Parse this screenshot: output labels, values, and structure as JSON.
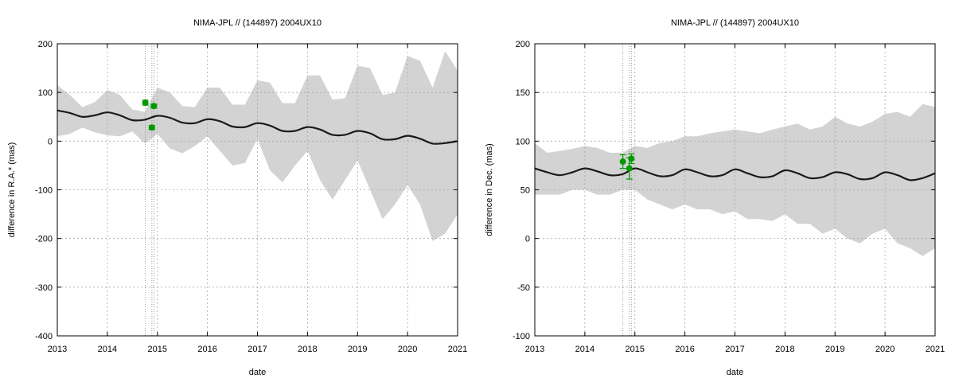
{
  "chart_data": [
    {
      "type": "line",
      "title": "NIMA-JPL // (144897) 2004UX10",
      "xlabel": "date",
      "ylabel": "difference in R.A.* (mas)",
      "xlim": [
        2013,
        2021
      ],
      "ylim": [
        -400,
        200
      ],
      "xticks": [
        "2013",
        "2014",
        "2015",
        "2016",
        "2017",
        "2018",
        "2019",
        "2020",
        "2021"
      ],
      "yticks": [
        "-400",
        "-300",
        "-200",
        "-100",
        "0",
        "100",
        "200"
      ],
      "grid": true,
      "vlines": [
        2014.76,
        2014.89,
        2014.93
      ],
      "series": [
        {
          "kind": "mean-line",
          "color": "#1a1a1a",
          "x": [
            2013.0,
            2013.25,
            2013.5,
            2013.75,
            2014.0,
            2014.25,
            2014.5,
            2014.75,
            2015.0,
            2015.25,
            2015.5,
            2015.75,
            2016.0,
            2016.25,
            2016.5,
            2016.75,
            2017.0,
            2017.25,
            2017.5,
            2017.75,
            2018.0,
            2018.25,
            2018.5,
            2018.75,
            2019.0,
            2019.25,
            2019.5,
            2019.75,
            2020.0,
            2020.25,
            2020.5,
            2020.75,
            2021.0
          ],
          "y": [
            63,
            58,
            50,
            53,
            59,
            53,
            43,
            44,
            52,
            48,
            38,
            37,
            45,
            41,
            30,
            29,
            37,
            32,
            21,
            21,
            29,
            24,
            13,
            13,
            21,
            16,
            4,
            4,
            11,
            5,
            -5,
            -4,
            0
          ]
        },
        {
          "kind": "uncertainty-band",
          "color": "#d3d3d3",
          "x": [
            2013.0,
            2013.25,
            2013.5,
            2013.75,
            2014.0,
            2014.25,
            2014.5,
            2014.75,
            2015.0,
            2015.25,
            2015.5,
            2015.75,
            2016.0,
            2016.25,
            2016.5,
            2016.75,
            2017.0,
            2017.25,
            2017.5,
            2017.75,
            2018.0,
            2018.25,
            2018.5,
            2018.75,
            2019.0,
            2019.25,
            2019.5,
            2019.75,
            2020.0,
            2020.25,
            2020.5,
            2020.75,
            2021.0
          ],
          "upper": [
            115,
            95,
            70,
            80,
            105,
            95,
            65,
            60,
            110,
            100,
            72,
            70,
            110,
            110,
            75,
            75,
            125,
            120,
            78,
            78,
            135,
            135,
            85,
            88,
            155,
            150,
            95,
            100,
            175,
            165,
            110,
            185,
            145
          ],
          "lower": [
            10,
            15,
            28,
            18,
            12,
            10,
            20,
            -5,
            15,
            -15,
            -25,
            -10,
            10,
            -20,
            -50,
            -45,
            5,
            -60,
            -85,
            -50,
            -20,
            -80,
            -120,
            -80,
            -40,
            -100,
            -160,
            -130,
            -90,
            -130,
            -205,
            -190,
            -150
          ]
        },
        {
          "kind": "observations",
          "color": "#009900",
          "x": [
            2014.76,
            2014.89,
            2014.93
          ],
          "y": [
            79,
            28,
            72
          ],
          "err": [
            5,
            4,
            4
          ]
        }
      ]
    },
    {
      "type": "line",
      "title": "NIMA-JPL // (144897) 2004UX10",
      "xlabel": "date",
      "ylabel": "difference in Dec. (mas)",
      "xlim": [
        2013,
        2021
      ],
      "ylim": [
        -100,
        200
      ],
      "xticks": [
        "2013",
        "2014",
        "2015",
        "2016",
        "2017",
        "2018",
        "2019",
        "2020",
        "2021"
      ],
      "yticks": [
        "-100",
        "-50",
        "0",
        "50",
        "100",
        "150",
        "200"
      ],
      "grid": true,
      "vlines": [
        2014.76,
        2014.89,
        2014.93
      ],
      "series": [
        {
          "kind": "mean-line",
          "color": "#1a1a1a",
          "x": [
            2013.0,
            2013.25,
            2013.5,
            2013.75,
            2014.0,
            2014.25,
            2014.5,
            2014.75,
            2015.0,
            2015.25,
            2015.5,
            2015.75,
            2016.0,
            2016.25,
            2016.5,
            2016.75,
            2017.0,
            2017.25,
            2017.5,
            2017.75,
            2018.0,
            2018.25,
            2018.5,
            2018.75,
            2019.0,
            2019.25,
            2019.5,
            2019.75,
            2020.0,
            2020.25,
            2020.5,
            2020.75,
            2021.0
          ],
          "y": [
            72,
            68,
            65,
            68,
            72,
            69,
            65,
            66,
            72,
            68,
            64,
            65,
            71,
            68,
            64,
            65,
            71,
            67,
            63,
            64,
            70,
            67,
            62,
            63,
            68,
            66,
            61,
            62,
            68,
            65,
            60,
            62,
            67
          ]
        },
        {
          "kind": "uncertainty-band",
          "color": "#d3d3d3",
          "x": [
            2013.0,
            2013.25,
            2013.5,
            2013.75,
            2014.0,
            2014.25,
            2014.5,
            2014.75,
            2015.0,
            2015.25,
            2015.5,
            2015.75,
            2016.0,
            2016.25,
            2016.5,
            2016.75,
            2017.0,
            2017.25,
            2017.5,
            2017.75,
            2018.0,
            2018.25,
            2018.5,
            2018.75,
            2019.0,
            2019.25,
            2019.5,
            2019.75,
            2020.0,
            2020.25,
            2020.5,
            2020.75,
            2021.0
          ],
          "upper": [
            98,
            88,
            90,
            92,
            95,
            93,
            88,
            88,
            95,
            93,
            98,
            100,
            105,
            105,
            108,
            110,
            112,
            110,
            108,
            112,
            115,
            118,
            112,
            115,
            125,
            118,
            115,
            120,
            128,
            130,
            125,
            138,
            135
          ],
          "lower": [
            45,
            45,
            45,
            50,
            50,
            45,
            45,
            50,
            50,
            40,
            35,
            30,
            35,
            30,
            30,
            25,
            28,
            20,
            20,
            18,
            25,
            15,
            15,
            5,
            10,
            0,
            -5,
            5,
            10,
            -5,
            -10,
            -18,
            -10
          ]
        },
        {
          "kind": "observations",
          "color": "#009900",
          "x": [
            2014.76,
            2014.89,
            2014.93
          ],
          "y": [
            79,
            72,
            82
          ],
          "err": [
            7,
            11,
            5
          ]
        }
      ]
    }
  ]
}
